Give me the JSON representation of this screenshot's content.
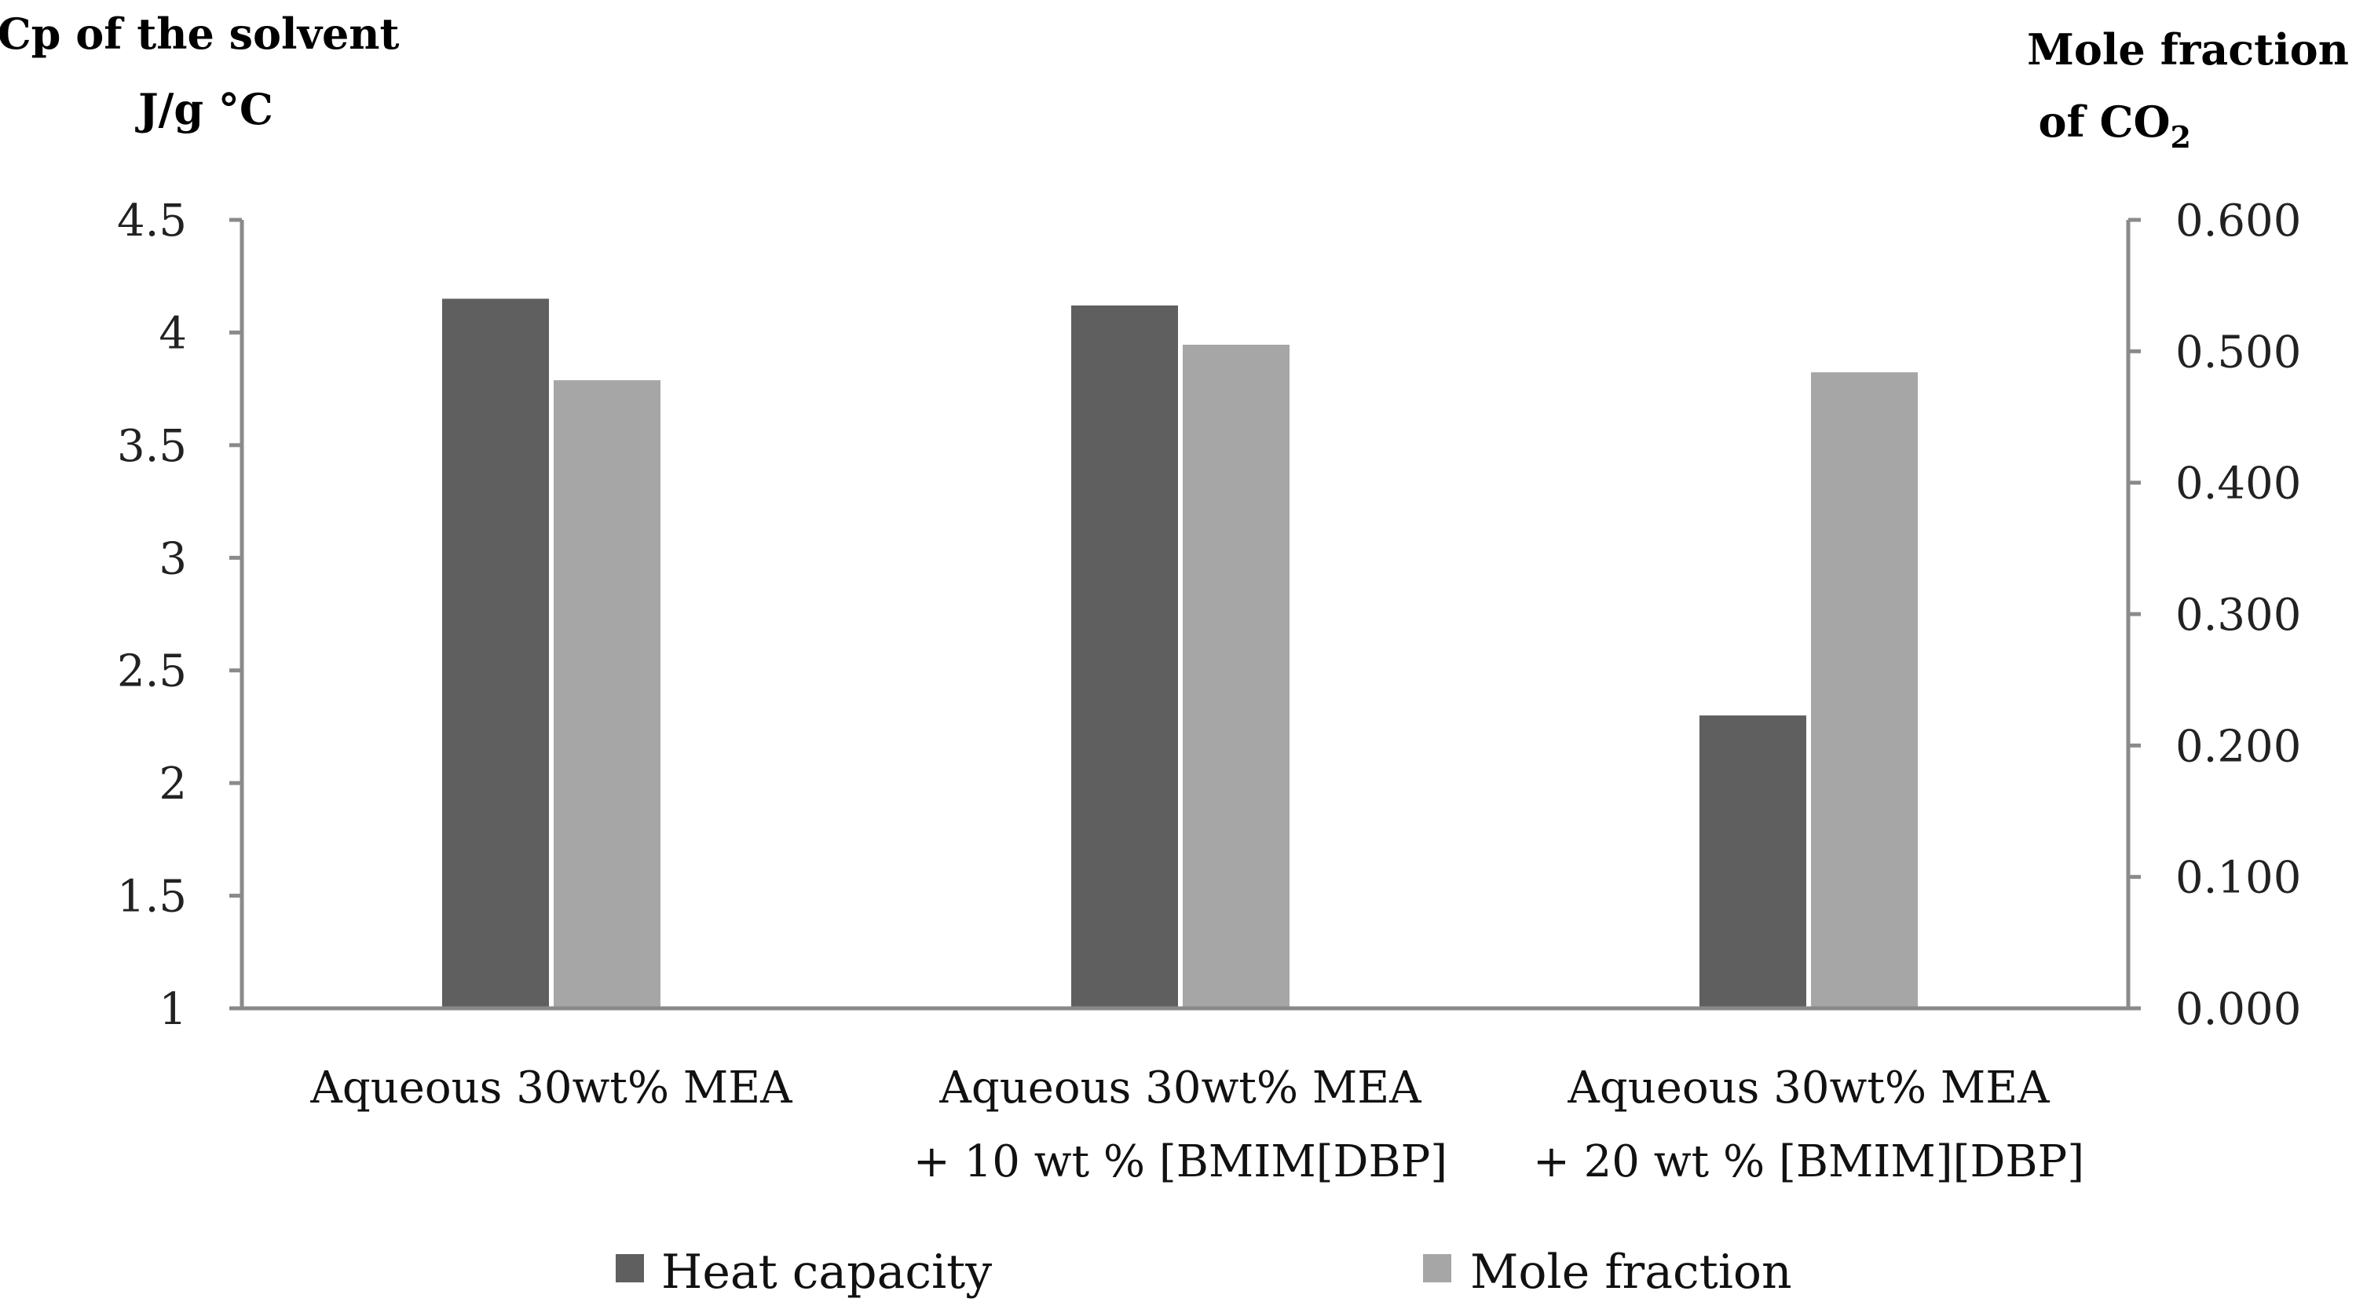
{
  "chart_data": {
    "type": "bar",
    "categories": [
      [
        "Aqueous 30wt% MEA"
      ],
      [
        "Aqueous 30wt% MEA",
        "+ 10 wt % [BMIM[DBP]"
      ],
      [
        "Aqueous 30wt% MEA",
        "+ 20 wt % [BMIM][DBP]"
      ]
    ],
    "series": [
      {
        "name": "Heat capacity",
        "axis": "left",
        "color": "#5f5f5f",
        "values": [
          4.15,
          4.12,
          2.3
        ]
      },
      {
        "name": "Mole fraction",
        "axis": "right",
        "color": "#a6a6a6",
        "values": [
          0.478,
          0.505,
          0.484
        ]
      }
    ],
    "left_axis": {
      "title_lines": [
        "Cp of the solvent",
        "J/g °C"
      ],
      "ylim": [
        1,
        4.5
      ],
      "ticks": [
        "1",
        "1.5",
        "2",
        "2.5",
        "3",
        "3.5",
        "4",
        "4.5"
      ],
      "tick_values": [
        1,
        1.5,
        2,
        2.5,
        3,
        3.5,
        4,
        4.5
      ]
    },
    "right_axis": {
      "title_line1": "Mole fraction",
      "title_line2_prefix": "of CO",
      "title_line2_sub": "2",
      "ylim": [
        0,
        0.6
      ],
      "ticks": [
        "0.000",
        "0.100",
        "0.200",
        "0.300",
        "0.400",
        "0.500",
        "0.600"
      ],
      "tick_values": [
        0,
        0.1,
        0.2,
        0.3,
        0.4,
        0.5,
        0.6
      ]
    },
    "legend": {
      "position": "bottom",
      "entries": [
        "Heat capacity",
        "Mole fraction"
      ]
    }
  }
}
